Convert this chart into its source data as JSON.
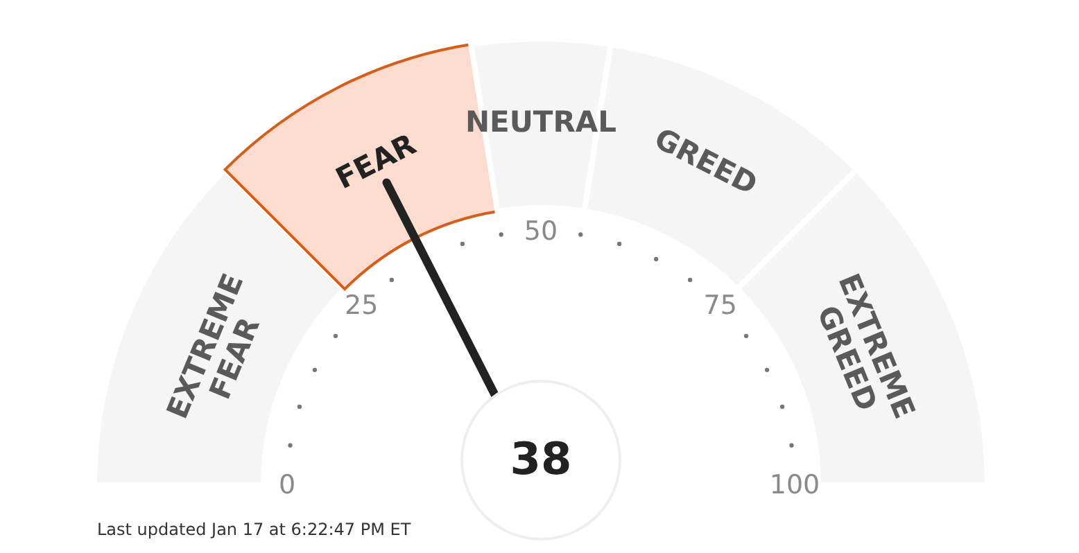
{
  "chart_data": {
    "type": "donut",
    "categories": [
      "EXTREME FEAR",
      "FEAR",
      "NEUTRAL",
      "GREED",
      "EXTREME GREED"
    ],
    "values": [
      25,
      20,
      10,
      20,
      25
    ],
    "colors": [
      "#f5f5f5",
      "#fddcd0",
      "#f5f5f5",
      "#f5f5f5",
      "#f5f5f5"
    ],
    "needle": "FEAR",
    "annotations": [
      "38",
      "0",
      "25",
      "50",
      "75",
      "100",
      "Last updated Jan 17 at 6:22:47 PM ET"
    ]
  }
}
